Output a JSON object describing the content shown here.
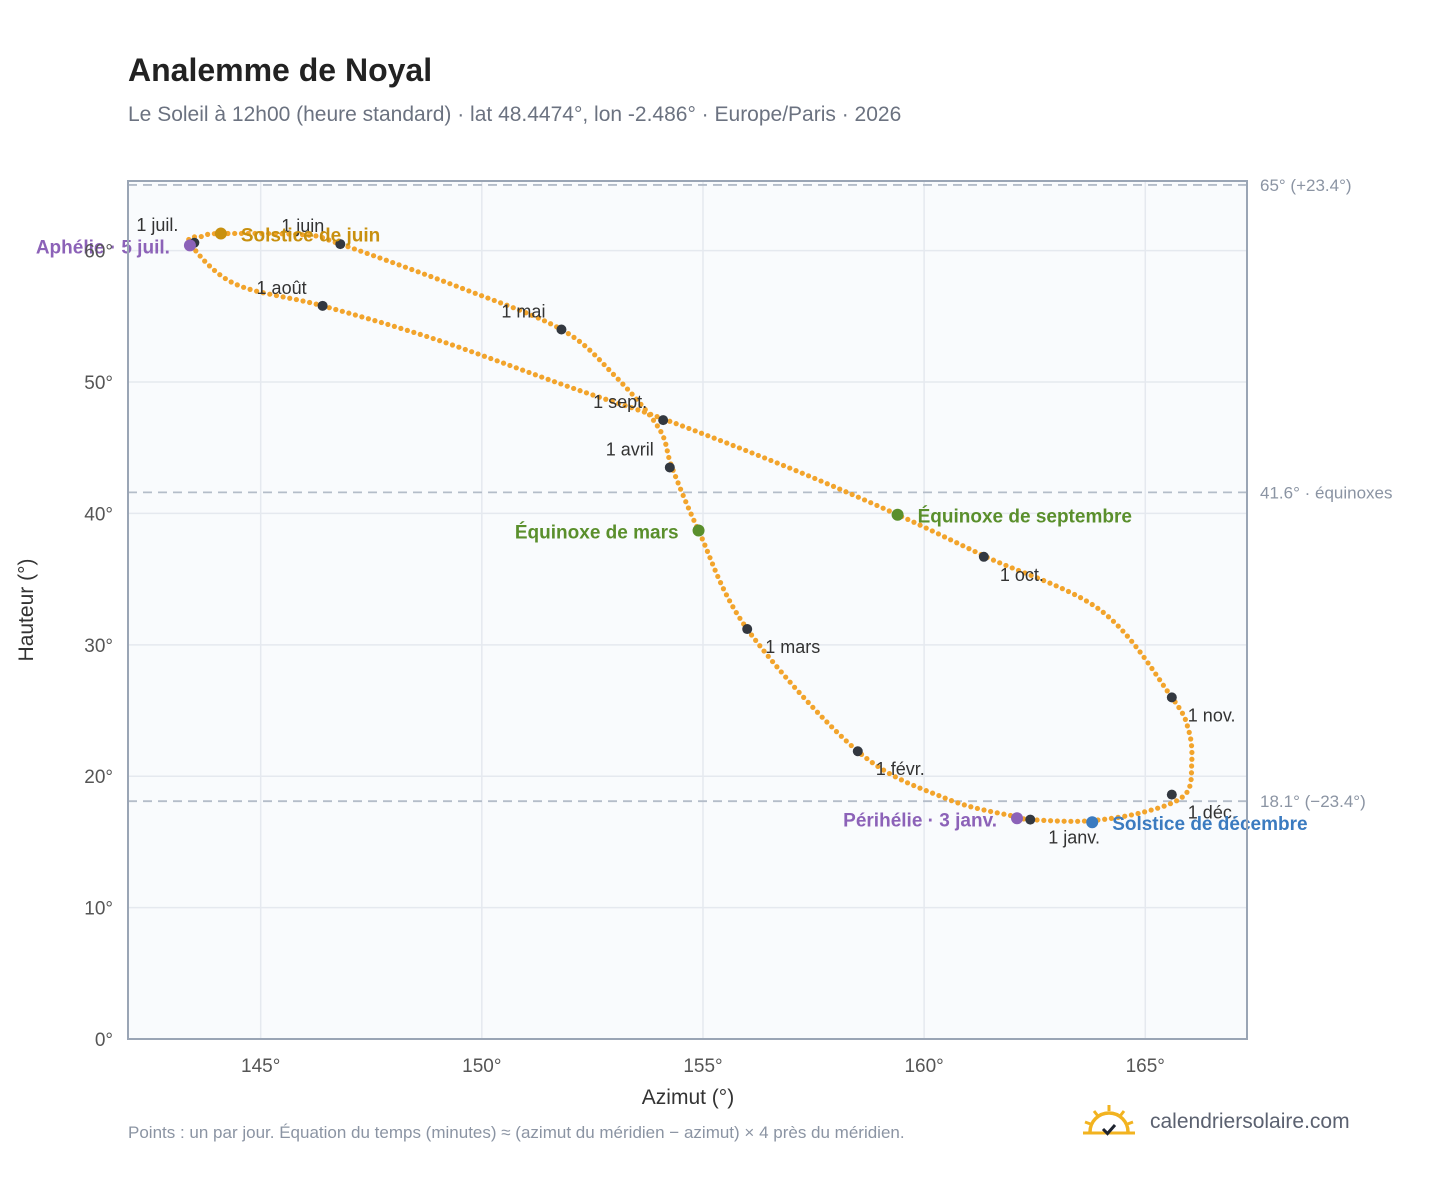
{
  "header": {
    "title": "Analemme de Noyal",
    "subtitle": "Le Soleil à 12h00 (heure standard) · lat 48.4474°, lon -2.486° · Europe/Paris · 2026"
  },
  "footer": {
    "note": "Points : un par jour. Équation du temps (minutes) ≈ (azimut du méridien − azimut) × 4 près du méridien.",
    "brand": "calendriersolaire.com",
    "brand_icon": "sun-logo-icon"
  },
  "colors": {
    "curve": "#f2a42c",
    "month_marker": "#333840",
    "solstice_june": "#c8900f",
    "solstice_december": "#3b7bc0",
    "equinox": "#5a8f2c",
    "apsis": "#8c62b8",
    "plot_background": "#f9fbfd",
    "grid": "#e5e9ef",
    "reference_line": "#b4bdc9"
  },
  "chart_data": {
    "type": "scatter",
    "xlabel": "Azimut (°)",
    "ylabel": "Hauteur (°)",
    "xlim": [
      142,
      167.3
    ],
    "ylim": [
      0,
      65.3
    ],
    "x_ticks": [
      145,
      150,
      155,
      160,
      165
    ],
    "x_tick_labels": [
      "145°",
      "150°",
      "155°",
      "160°",
      "165°"
    ],
    "y_ticks": [
      0,
      10,
      20,
      30,
      40,
      50,
      60
    ],
    "y_tick_labels": [
      "0°",
      "10°",
      "20°",
      "30°",
      "40°",
      "50°",
      "60°"
    ],
    "grid": true,
    "legend": "none",
    "reference_lines": [
      {
        "y": 65.0,
        "label": "65° (+23.4°)"
      },
      {
        "y": 41.6,
        "label": "41.6° · équinoxes"
      },
      {
        "y": 18.1,
        "label": "18.1° (−23.4°)"
      }
    ],
    "series": [
      {
        "points_note": "one point per day",
        "path_x": [
          162.4,
          163.7,
          165.0,
          165.9,
          166.05,
          165.98,
          165.6,
          164.0,
          161.4,
          159.4,
          157.0,
          154.1,
          152.0,
          149.0,
          146.4,
          144.4,
          143.4,
          143.7,
          144.1,
          146.0,
          146.8,
          149.5,
          151.8,
          153.0,
          154.0,
          154.3,
          154.9,
          156.0,
          158.5,
          160.5,
          162.1,
          162.4
        ],
        "path_y": [
          16.7,
          16.6,
          17.3,
          18.6,
          21.0,
          23.5,
          26.0,
          32.6,
          36.7,
          39.9,
          43.4,
          47.2,
          49.6,
          53.2,
          55.8,
          57.5,
          60.6,
          61.1,
          61.3,
          61.2,
          60.5,
          57.2,
          54.0,
          50.5,
          46.5,
          43.5,
          38.7,
          31.2,
          21.9,
          18.3,
          16.9,
          16.7
        ],
        "values_note": "closed loop through month markers, in data units"
      }
    ],
    "month_markers": [
      {
        "label": "1 janv.",
        "x": 162.4,
        "y": 16.7
      },
      {
        "label": "1 févr.",
        "x": 158.5,
        "y": 21.9
      },
      {
        "label": "1 mars",
        "x": 156.0,
        "y": 31.2
      },
      {
        "label": "1 avril",
        "x": 154.25,
        "y": 43.5
      },
      {
        "label": "1 mai",
        "x": 151.8,
        "y": 54.0
      },
      {
        "label": "1 juin",
        "x": 146.8,
        "y": 60.5
      },
      {
        "label": "1 juil.",
        "x": 143.5,
        "y": 60.6
      },
      {
        "label": "1 août",
        "x": 146.4,
        "y": 55.8
      },
      {
        "label": "1 sept.",
        "x": 154.1,
        "y": 47.1
      },
      {
        "label": "1 oct.",
        "x": 161.35,
        "y": 36.7
      },
      {
        "label": "1 nov.",
        "x": 165.6,
        "y": 26.0
      },
      {
        "label": "1 déc.",
        "x": 165.6,
        "y": 18.6
      }
    ],
    "events": [
      {
        "label": "Solstice de juin",
        "x": 144.1,
        "y": 61.3,
        "kind": "solstice_june"
      },
      {
        "label": "Solstice de décembre",
        "x": 163.8,
        "y": 16.5,
        "kind": "solstice_december"
      },
      {
        "label": "Équinoxe de mars",
        "x": 154.9,
        "y": 38.7,
        "kind": "equinox"
      },
      {
        "label": "Équinoxe de septembre",
        "x": 159.4,
        "y": 39.9,
        "kind": "equinox"
      },
      {
        "label": "Aphélie · 5 juil.",
        "x": 143.4,
        "y": 60.4,
        "kind": "apsis"
      },
      {
        "label": "Périhélie · 3 janv.",
        "x": 162.1,
        "y": 16.8,
        "kind": "apsis"
      }
    ]
  }
}
